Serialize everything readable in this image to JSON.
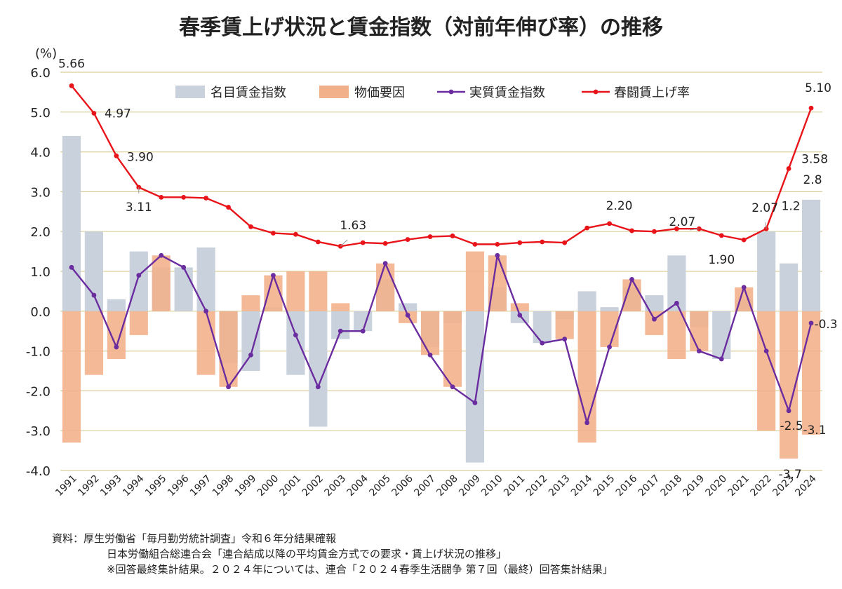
{
  "chart_data": {
    "title": "春季賃上げ状況と賃金指数（対前年伸び率）の推移",
    "unit_label": "(%)",
    "ylim": [
      -4.0,
      6.0
    ],
    "yticks": [
      "6.0",
      "5.0",
      "4.0",
      "3.0",
      "2.0",
      "1.0",
      "0.0",
      "-1.0",
      "-2.0",
      "-3.0",
      "-4.0"
    ],
    "categories": [
      "1991",
      "1992",
      "1993",
      "1994",
      "1995",
      "1996",
      "1997",
      "1998",
      "1999",
      "2000",
      "2001",
      "2002",
      "2003",
      "2004",
      "2005",
      "2006",
      "2007",
      "2008",
      "2009",
      "2010",
      "2011",
      "2012",
      "2013",
      "2014",
      "2015",
      "2016",
      "2017",
      "2018",
      "2019",
      "2020",
      "2021",
      "2022",
      "2023",
      "2024"
    ],
    "legend": [
      "名目賃金指数",
      "物価要因",
      "実質賃金指数",
      "春闘賃上げ率"
    ],
    "colors": {
      "nominal": "#c9d1dc",
      "price": "#f2b08a",
      "real": "#6a2c9f",
      "shunto": "#e8141a",
      "grid": "#d9cf9a"
    },
    "series": [
      {
        "name": "名目賃金指数",
        "type": "bar",
        "values": [
          4.4,
          2.0,
          0.3,
          1.5,
          1.1,
          1.1,
          1.6,
          -1.3,
          -1.5,
          0.1,
          -1.6,
          -2.9,
          -0.7,
          -0.5,
          0.8,
          0.2,
          -0.9,
          -0.3,
          -3.8,
          0.6,
          -0.3,
          -0.8,
          -0.2,
          0.5,
          0.1,
          0.6,
          0.4,
          1.4,
          -0.4,
          -1.2,
          0.3,
          2.0,
          1.2,
          2.8
        ]
      },
      {
        "name": "物価要因",
        "type": "bar",
        "values": [
          -3.3,
          -1.6,
          -1.2,
          -0.6,
          1.4,
          0.0,
          -1.6,
          -1.9,
          0.4,
          0.9,
          1.0,
          1.0,
          0.2,
          0.0,
          1.2,
          -0.3,
          -1.1,
          -1.9,
          1.5,
          1.4,
          0.2,
          0.0,
          -0.7,
          -3.3,
          -0.9,
          0.8,
          -0.6,
          -1.2,
          -1.0,
          0.0,
          0.6,
          -3.0,
          -3.7,
          -3.1
        ]
      },
      {
        "name": "実質賃金指数",
        "type": "line",
        "values": [
          1.1,
          0.4,
          -0.9,
          0.9,
          1.4,
          1.1,
          0.0,
          -1.9,
          -1.1,
          0.9,
          -0.6,
          -1.9,
          -0.5,
          -0.5,
          1.2,
          -0.1,
          -1.1,
          -1.9,
          -2.3,
          1.4,
          -0.1,
          -0.8,
          -0.7,
          -2.8,
          -0.9,
          0.8,
          -0.2,
          0.2,
          -1.0,
          -1.2,
          0.6,
          -1.0,
          -2.5,
          -0.3
        ]
      },
      {
        "name": "春闘賃上げ率",
        "type": "line",
        "values": [
          5.66,
          4.97,
          3.9,
          3.11,
          2.86,
          2.86,
          2.84,
          2.61,
          2.12,
          1.96,
          1.93,
          1.74,
          1.63,
          1.72,
          1.7,
          1.8,
          1.87,
          1.89,
          1.68,
          1.68,
          1.72,
          1.74,
          1.72,
          2.09,
          2.2,
          2.02,
          2.0,
          2.07,
          2.07,
          1.9,
          1.79,
          2.07,
          3.58,
          5.1
        ]
      }
    ],
    "annotations": [
      {
        "text": "5.66",
        "i": 0,
        "series": "春闘賃上げ率"
      },
      {
        "text": "4.97",
        "i": 1,
        "series": "春闘賃上げ率"
      },
      {
        "text": "3.90",
        "i": 2,
        "series": "春闘賃上げ率"
      },
      {
        "text": "3.11",
        "i": 3,
        "series": "春闘賃上げ率"
      },
      {
        "text": "1.63",
        "i": 12,
        "series": "春闘賃上げ率"
      },
      {
        "text": "2.20",
        "i": 24,
        "series": "春闘賃上げ率"
      },
      {
        "text": "2.07",
        "i": 28,
        "series": "春闘賃上げ率"
      },
      {
        "text": "1.90",
        "i": 29,
        "series": "春闘賃上げ率"
      },
      {
        "text": "2.07",
        "i": 31,
        "series": "春闘賃上げ率"
      },
      {
        "text": "3.58",
        "i": 32,
        "series": "春闘賃上げ率"
      },
      {
        "text": "5.10",
        "i": 33,
        "series": "春闘賃上げ率"
      },
      {
        "text": "1.2",
        "i": 32,
        "series": "名目賃金指数"
      },
      {
        "text": "2.8",
        "i": 33,
        "series": "名目賃金指数"
      },
      {
        "text": "-2.5",
        "i": 32,
        "series": "実質賃金指数"
      },
      {
        "text": "-0.3",
        "i": 33,
        "series": "実質賃金指数"
      },
      {
        "text": "-3.7",
        "i": 32,
        "series": "物価要因"
      },
      {
        "text": "-3.1",
        "i": 33,
        "series": "物価要因"
      }
    ],
    "grid": true,
    "legend_position": "top"
  },
  "notes": [
    "資料：厚生労働省「毎月勤労統計調査」令和６年分結果確報",
    "日本労働組合総連合会「連合結成以降の平均賃金方式での要求・賃上げ状況の推移」",
    "※回答最終集計結果。２０２４年については、連合「２０２４春季生活闘争 第７回（最終）回答集計結果」"
  ]
}
